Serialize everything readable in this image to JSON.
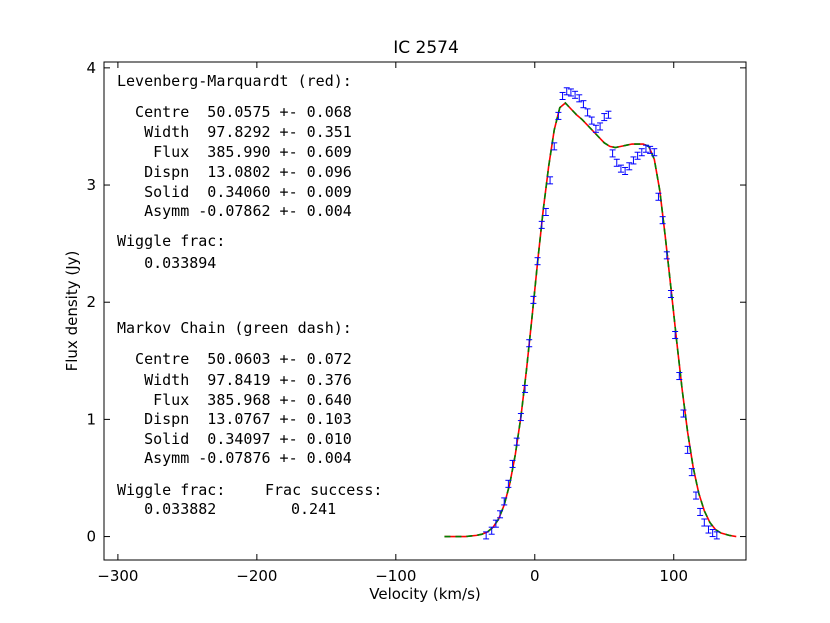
{
  "chart_data": {
    "type": "line",
    "title": "IC 2574",
    "xlabel": "Velocity (km/s)",
    "ylabel": "Flux density (Jy)",
    "xlim": [
      -310,
      152
    ],
    "ylim": [
      -0.2,
      4.05
    ],
    "xticks": [
      -300,
      -200,
      -100,
      0,
      100
    ],
    "xtick_labels": [
      "−300",
      "−200",
      "−100",
      "0",
      "100"
    ],
    "yticks": [
      0,
      1,
      2,
      3,
      4
    ],
    "ytick_labels": [
      "0",
      "1",
      "2",
      "3",
      "4"
    ],
    "grid": false,
    "series": [
      {
        "style": "data with error bars",
        "color": "#0000ff",
        "x": [
          -35,
          -31,
          -28,
          -25,
          -22,
          -19,
          -16,
          -13,
          -10,
          -7,
          -4,
          -1,
          2,
          5,
          8,
          11,
          14,
          17,
          20,
          23,
          26,
          29,
          32,
          35,
          38,
          41,
          44,
          47,
          50,
          53,
          56,
          59,
          62,
          65,
          68,
          71,
          74,
          77,
          80,
          83,
          86,
          89,
          92,
          95,
          98,
          101,
          104,
          107,
          110,
          113,
          116,
          119,
          122,
          125,
          128,
          131
        ],
        "y": [
          0.01,
          0.05,
          0.11,
          0.19,
          0.3,
          0.45,
          0.62,
          0.81,
          1.02,
          1.26,
          1.65,
          2.02,
          2.35,
          2.66,
          2.77,
          3.04,
          3.33,
          3.59,
          3.76,
          3.8,
          3.79,
          3.77,
          3.74,
          3.69,
          3.62,
          3.55,
          3.48,
          3.5,
          3.58,
          3.6,
          3.27,
          3.19,
          3.14,
          3.12,
          3.16,
          3.21,
          3.25,
          3.28,
          3.31,
          3.3,
          3.28,
          2.9,
          2.7,
          2.4,
          2.07,
          1.72,
          1.37,
          1.05,
          0.74,
          0.55,
          0.35,
          0.21,
          0.12,
          0.06,
          0.03,
          0.01
        ],
        "yerr": 0.03
      },
      {
        "style": "solid",
        "color": "#ff0000",
        "x": [
          -65,
          -50,
          -42,
          -38,
          -34,
          -30,
          -26,
          -22,
          -18,
          -14,
          -10,
          -6,
          -2,
          2,
          6,
          10,
          14,
          18,
          22,
          26,
          30,
          34,
          38,
          42,
          46,
          50,
          54,
          58,
          62,
          66,
          70,
          74,
          78,
          82,
          86,
          90,
          94,
          98,
          102,
          106,
          110,
          114,
          118,
          122,
          126,
          130,
          134,
          140,
          145
        ],
        "y": [
          0.0,
          0.0,
          0.01,
          0.02,
          0.04,
          0.08,
          0.15,
          0.27,
          0.45,
          0.7,
          1.02,
          1.42,
          1.87,
          2.34,
          2.78,
          3.16,
          3.47,
          3.66,
          3.7,
          3.65,
          3.6,
          3.56,
          3.51,
          3.46,
          3.41,
          3.36,
          3.33,
          3.32,
          3.33,
          3.34,
          3.35,
          3.35,
          3.35,
          3.33,
          3.22,
          2.95,
          2.55,
          2.12,
          1.68,
          1.26,
          0.89,
          0.59,
          0.37,
          0.22,
          0.12,
          0.06,
          0.03,
          0.01,
          0.0
        ]
      },
      {
        "style": "dashed",
        "color": "#008000",
        "x": [
          -65,
          -50,
          -42,
          -38,
          -34,
          -30,
          -26,
          -22,
          -18,
          -14,
          -10,
          -6,
          -2,
          2,
          6,
          10,
          14,
          18,
          22,
          26,
          30,
          34,
          38,
          42,
          46,
          50,
          54,
          58,
          62,
          66,
          70,
          74,
          78,
          82,
          86,
          90,
          94,
          98,
          102,
          106,
          110,
          114,
          118,
          122,
          126,
          130,
          134,
          140,
          145
        ],
        "y": [
          0.0,
          0.0,
          0.01,
          0.02,
          0.04,
          0.08,
          0.15,
          0.27,
          0.45,
          0.7,
          1.02,
          1.42,
          1.87,
          2.34,
          2.78,
          3.16,
          3.47,
          3.66,
          3.7,
          3.65,
          3.6,
          3.56,
          3.51,
          3.46,
          3.41,
          3.36,
          3.33,
          3.32,
          3.33,
          3.34,
          3.35,
          3.35,
          3.35,
          3.33,
          3.22,
          2.95,
          2.55,
          2.12,
          1.68,
          1.26,
          0.89,
          0.59,
          0.37,
          0.22,
          0.12,
          0.06,
          0.03,
          0.01,
          0.0
        ]
      }
    ],
    "annotations": {
      "lm_header": "Levenberg-Marquardt (red):",
      "lm_rows": [
        "  Centre  50.0575 +- 0.068",
        "   Width  97.8292 +- 0.351",
        "    Flux  385.990 +- 0.609",
        "   Dispn  13.0802 +- 0.096",
        "   Solid  0.34060 +- 0.009",
        "   Asymm -0.07862 +- 0.004"
      ],
      "lm_wiggle_label": "Wiggle frac:",
      "lm_wiggle_value": "   0.033894",
      "mc_header": "Markov Chain (green dash):",
      "mc_rows": [
        "  Centre  50.0603 +- 0.072",
        "   Width  97.8419 +- 0.376",
        "    Flux  385.968 +- 0.640",
        "   Dispn  13.0767 +- 0.103",
        "   Solid  0.34097 +- 0.010",
        "   Asymm -0.07876 +- 0.004"
      ],
      "mc_wiggle_label": "Wiggle frac:",
      "mc_wiggle_value": "   0.033882",
      "mc_frac_label": "Frac success:",
      "mc_frac_value": "0.241"
    }
  }
}
